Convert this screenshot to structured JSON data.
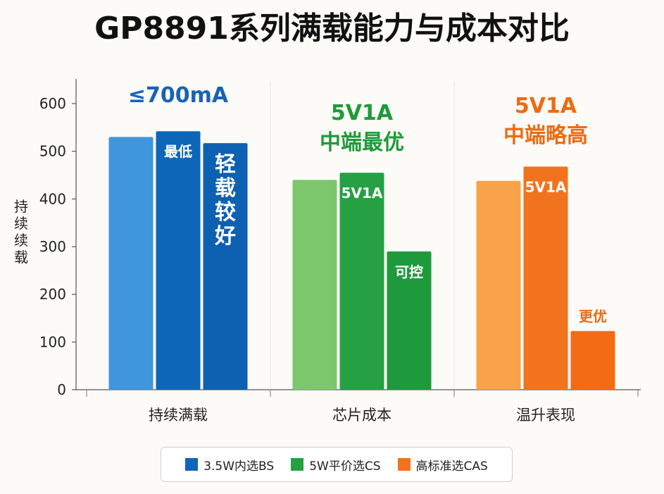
{
  "title": "GP8891系列满载能力与成本对比",
  "chart_data": {
    "type": "bar",
    "categories": [
      "持续满载",
      "芯片成本",
      "温升表现"
    ],
    "ylabel": "持续续载",
    "ylim": [
      0,
      650
    ],
    "yticks": [
      0,
      100,
      200,
      300,
      400,
      500,
      600
    ],
    "series": [
      {
        "values": [
          530,
          440,
          438
        ],
        "colors": [
          "#3f96dc",
          "#7cc76c",
          "#f9a24a"
        ]
      },
      {
        "values": [
          542,
          455,
          468
        ],
        "colors": [
          "#0e66b8",
          "#25a043",
          "#f2731e"
        ]
      },
      {
        "values": [
          517,
          290,
          123
        ],
        "colors": [
          "#0e60b0",
          "#1e9a3c",
          "#f36b15"
        ]
      }
    ],
    "bar_labels": [
      [
        "",
        "最低",
        "轻\n载\n较\n好"
      ],
      [
        "",
        "5V1A",
        "可控"
      ],
      [
        "",
        "5V1A",
        "更优"
      ]
    ],
    "group_annotations": [
      {
        "text": "≤700mA",
        "color": "#1a62b6"
      },
      {
        "text": "5V1A\n中端最优",
        "color": "#1f9a3a"
      },
      {
        "text": "5V1A\n中端略高",
        "color": "#ee6a12"
      }
    ],
    "legend": {
      "placement": "bottom",
      "items": [
        {
          "label": "3.5W内选BS",
          "color": "#0e66b8"
        },
        {
          "label": "5W平价选CS",
          "color": "#25a043"
        },
        {
          "label": "高标准选CAS",
          "color": "#f2731e"
        }
      ]
    },
    "grid": "vertical group separators"
  }
}
